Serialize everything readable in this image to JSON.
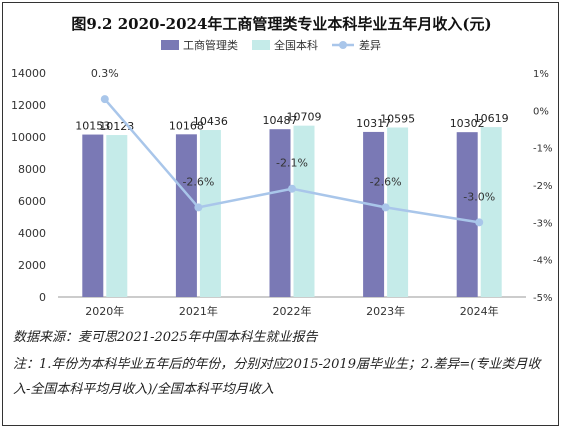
{
  "title": "图9.2 2020-2024年工商管理类专业本科毕业五年月收入(元)",
  "source": "数据来源：麦可思2021-2025年中国本科生就业报告",
  "notes": "注：1.年份为本科毕业五年后的年份，分别对应2015-2019届毕业生；2.差异=(专业类月收入-全国本科平均月收入)/全国本科平均月收入",
  "colors": {
    "series1": "#7a79b5",
    "series2": "#c5ebe9",
    "line": "#a9c6ea",
    "axis": "#999999"
  },
  "chart_data": {
    "type": "bar",
    "categories": [
      "2020年",
      "2021年",
      "2022年",
      "2023年",
      "2024年"
    ],
    "series": [
      {
        "name": "工商管理类",
        "values": [
          10153,
          10168,
          10487,
          10317,
          10302
        ]
      },
      {
        "name": "全国本科",
        "values": [
          10123,
          10436,
          10709,
          10595,
          10619
        ]
      }
    ],
    "line_series": {
      "name": "差异",
      "values": [
        0.3,
        -2.6,
        -2.1,
        -2.6,
        -3.0
      ],
      "labels": [
        "0.3%",
        "-2.6%",
        "-2.1%",
        "-2.6%",
        "-3.0%"
      ]
    },
    "ylim": [
      0,
      14000
    ],
    "y_ticks": [
      "0",
      "2000",
      "4000",
      "6000",
      "8000",
      "10000",
      "12000",
      "14000"
    ],
    "y2lim": [
      -5,
      1
    ],
    "y2_ticks": [
      "-5%",
      "-4%",
      "-3%",
      "-2%",
      "-1%",
      "0%",
      "1%"
    ],
    "legend_position": "top"
  }
}
